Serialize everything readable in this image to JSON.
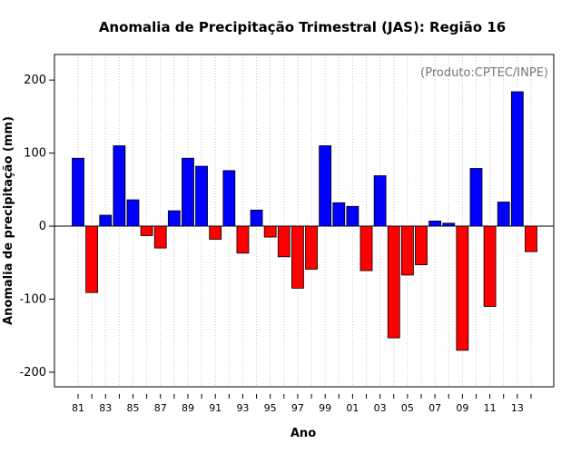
{
  "chart_data": {
    "type": "bar",
    "title": "Anomalia de Precipitação Trimestral (JAS): Região 16",
    "xlabel": "Ano",
    "ylabel": "Anomalia de precipitação (mm)",
    "source_note": "(Produto:CPTEC/INPE)",
    "ylim": [
      -220,
      235
    ],
    "yticks": [
      -200,
      -100,
      0,
      100,
      200
    ],
    "grid": "vertical-dotted",
    "positive_color": "#0000ff",
    "negative_color": "#ff0000",
    "years": [
      1981,
      1982,
      1983,
      1984,
      1985,
      1986,
      1987,
      1988,
      1989,
      1990,
      1991,
      1992,
      1993,
      1994,
      1995,
      1996,
      1997,
      1998,
      1999,
      2000,
      2001,
      2002,
      2003,
      2004,
      2005,
      2006,
      2007,
      2008,
      2009,
      2010,
      2011,
      2012,
      2013,
      2014
    ],
    "values": [
      93,
      -91,
      15,
      110,
      36,
      -13,
      -30,
      21,
      93,
      82,
      -18,
      76,
      -37,
      22,
      -15,
      -42,
      -85,
      -59,
      110,
      32,
      27,
      -61,
      69,
      -153,
      -67,
      -53,
      7,
      4,
      -170,
      79,
      -110,
      33,
      184,
      -35
    ],
    "x_tick_labels": [
      "81",
      "83",
      "85",
      "87",
      "89",
      "91",
      "93",
      "95",
      "97",
      "99",
      "01",
      "03",
      "05",
      "07",
      "09",
      "11",
      "13"
    ]
  }
}
